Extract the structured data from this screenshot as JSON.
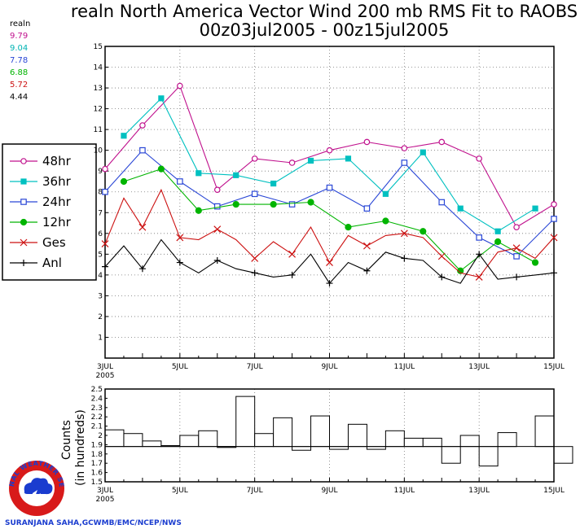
{
  "header": {
    "title_line1": "realn North America Vector Wind 200 mb RMS Fit to RAOBS",
    "title_line2": "00z03jul2005 - 00z15jul2005"
  },
  "mean_box": {
    "label": "realn",
    "values": [
      "9.79",
      "9.04",
      "7.78",
      "6.88",
      "5.72",
      "4.44"
    ],
    "colors": [
      "#c0118d",
      "#00b3b3",
      "#2a47d6",
      "#00b400",
      "#cc1111",
      "#000000"
    ]
  },
  "legend": [
    {
      "label": "48hr",
      "color": "#c0118d",
      "marker": "open-circle"
    },
    {
      "label": "36hr",
      "color": "#00c0c0",
      "marker": "filled-square"
    },
    {
      "label": "24hr",
      "color": "#2a47d6",
      "marker": "open-square"
    },
    {
      "label": "12hr",
      "color": "#00b400",
      "marker": "filled-circle"
    },
    {
      "label": "Ges",
      "color": "#cc1111",
      "marker": "x-cross"
    },
    {
      "label": "Anl",
      "color": "#000000",
      "marker": "plus"
    }
  ],
  "counts_panel": {
    "ylabel_line1": "Counts",
    "ylabel_line2": "(in hundreds)"
  },
  "credit": "SURANJANA SAHA,GCWMB/EMC/NCEP/NWS",
  "logo_text": "NATIONAL WEATHER SERVICE",
  "chart_data": [
    {
      "type": "line",
      "title": "realn North America Vector Wind 200 mb RMS Fit to RAOBS",
      "x_unit": "day index (0 = 00z 3 JUL 2005, step 0.5 day)",
      "xlim": [
        0,
        12
      ],
      "ylim": [
        0,
        15
      ],
      "yticks": [
        "1",
        "2",
        "3",
        "4",
        "5",
        "6",
        "7",
        "8",
        "9",
        "10",
        "11",
        "12",
        "13",
        "14",
        "15"
      ],
      "xticks": [
        {
          "x": 0,
          "label": "3JUL",
          "sub": "2005"
        },
        {
          "x": 2,
          "label": "5JUL"
        },
        {
          "x": 4,
          "label": "7JUL"
        },
        {
          "x": 6,
          "label": "9JUL"
        },
        {
          "x": 8,
          "label": "11JUL"
        },
        {
          "x": 10,
          "label": "13JUL"
        },
        {
          "x": 12,
          "label": "15JUL"
        }
      ],
      "grid": "dotted",
      "series": [
        {
          "name": "48hr",
          "color": "#c0118d",
          "marker": "open-circle",
          "marker_every": 1,
          "x": [
            0,
            1,
            2,
            3,
            4,
            5,
            6,
            7,
            8,
            9,
            10,
            11,
            12
          ],
          "y": [
            9.1,
            11.2,
            13.1,
            8.1,
            9.6,
            9.4,
            10.0,
            10.4,
            10.1,
            10.4,
            9.6,
            6.3,
            7.4
          ]
        },
        {
          "name": "36hr",
          "color": "#00c0c0",
          "marker": "filled-square",
          "marker_every": 1,
          "x": [
            0.5,
            1.5,
            2.5,
            3.5,
            4.5,
            5.5,
            6.5,
            7.5,
            8.5,
            9.5,
            10.5,
            11.5
          ],
          "y": [
            10.7,
            12.5,
            8.9,
            8.8,
            8.4,
            9.5,
            9.6,
            7.9,
            9.9,
            7.2,
            6.1,
            7.2
          ]
        },
        {
          "name": "24hr",
          "color": "#2a47d6",
          "marker": "open-square",
          "marker_every": 1,
          "x": [
            0,
            1,
            2,
            3,
            4,
            5,
            6,
            7,
            8,
            9,
            10,
            11,
            12
          ],
          "y": [
            8.0,
            10.0,
            8.5,
            7.3,
            7.9,
            7.4,
            8.2,
            7.2,
            9.4,
            7.5,
            5.8,
            4.9,
            6.7
          ]
        },
        {
          "name": "12hr",
          "color": "#00b400",
          "marker": "filled-circle",
          "marker_every": 1,
          "x": [
            0.5,
            1.5,
            2.5,
            3.5,
            4.5,
            5.5,
            6.5,
            7.5,
            8.5,
            9.5,
            10.5,
            11.5
          ],
          "y": [
            8.5,
            9.1,
            7.1,
            7.4,
            7.4,
            7.5,
            6.3,
            6.6,
            6.1,
            4.2,
            5.6,
            4.6
          ]
        },
        {
          "name": "Ges",
          "color": "#cc1111",
          "marker": "x-cross",
          "marker_every": 2,
          "x": [
            0,
            0.5,
            1,
            1.5,
            2,
            2.5,
            3,
            3.5,
            4,
            4.5,
            5,
            5.5,
            6,
            6.5,
            7,
            7.5,
            8,
            8.5,
            9,
            9.5,
            10,
            10.5,
            11,
            11.5,
            12
          ],
          "y": [
            5.5,
            7.7,
            6.3,
            8.1,
            5.8,
            5.7,
            6.2,
            5.7,
            4.8,
            5.6,
            5.0,
            6.3,
            4.6,
            5.9,
            5.4,
            5.9,
            6.0,
            5.8,
            4.9,
            4.1,
            3.9,
            5.1,
            5.3,
            4.8,
            5.8
          ]
        },
        {
          "name": "Anl",
          "color": "#000000",
          "marker": "plus",
          "marker_every": 2,
          "x": [
            0,
            0.5,
            1,
            1.5,
            2,
            2.5,
            3,
            3.5,
            4,
            4.5,
            5,
            5.5,
            6,
            6.5,
            7,
            7.5,
            8,
            8.5,
            9,
            9.5,
            10,
            10.5,
            11,
            11.5,
            12
          ],
          "y": [
            4.4,
            5.4,
            4.3,
            5.7,
            4.6,
            4.1,
            4.7,
            4.3,
            4.1,
            3.9,
            4.0,
            5.0,
            3.6,
            4.6,
            4.2,
            5.1,
            4.8,
            4.7,
            3.9,
            3.6,
            5.0,
            3.8,
            3.9,
            4.0,
            4.1
          ]
        }
      ]
    },
    {
      "type": "bar",
      "title": "",
      "ylabel": "Counts (in hundreds)",
      "ylim": [
        1.5,
        2.5
      ],
      "yticks": [
        "1.5",
        "1.6",
        "1.7",
        "1.8",
        "1.9",
        "2",
        "2.1",
        "2.2",
        "2.3",
        "2.4",
        "2.5"
      ],
      "baseline": 1.88,
      "xlim": [
        0,
        12
      ],
      "xticks": [
        {
          "x": 0,
          "label": "3JUL",
          "sub": "2005"
        },
        {
          "x": 2,
          "label": "5JUL"
        },
        {
          "x": 4,
          "label": "7JUL"
        },
        {
          "x": 6,
          "label": "9JUL"
        },
        {
          "x": 8,
          "label": "11JUL"
        },
        {
          "x": 10,
          "label": "13JUL"
        },
        {
          "x": 12,
          "label": "15JUL"
        }
      ],
      "bar_width_days": 0.5,
      "values": [
        2.06,
        2.02,
        1.94,
        1.89,
        2.0,
        2.05,
        1.87,
        2.42,
        2.02,
        2.19,
        1.84,
        2.21,
        1.85,
        2.12,
        1.85,
        2.05,
        1.97,
        1.97,
        1.7,
        2.0,
        1.67,
        2.03,
        1.88,
        2.21,
        1.7
      ]
    }
  ]
}
